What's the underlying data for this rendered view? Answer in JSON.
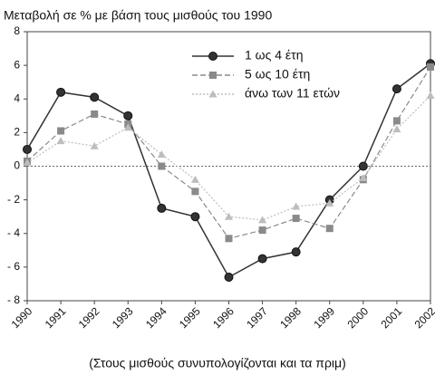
{
  "chart_data": {
    "type": "line",
    "title": "Μεταβολή σε % με βάση τους μισθούς του 1990",
    "caption": "(Στους μισθούς συνυπολογίζονται και τα πριμ)",
    "categories": [
      "1990",
      "1991",
      "1992",
      "1993",
      "1994",
      "1995",
      "1996",
      "1997",
      "1998",
      "1999",
      "2000",
      "2001",
      "2002"
    ],
    "series": [
      {
        "name": "1 ως 4 έτη",
        "color": "#333333",
        "marker": "circle",
        "dash": "none",
        "values": [
          1.0,
          4.4,
          4.1,
          3.0,
          -2.5,
          -3.0,
          -6.6,
          -5.5,
          -5.1,
          -2.0,
          0.0,
          4.6,
          6.1
        ]
      },
      {
        "name": "5 ως 10 έτη",
        "color": "#8a8a8a",
        "marker": "square",
        "dash": "6,3",
        "values": [
          0.3,
          2.1,
          3.1,
          2.5,
          0.0,
          -1.5,
          -4.3,
          -3.8,
          -3.1,
          -3.7,
          -0.8,
          2.7,
          5.9
        ]
      },
      {
        "name": "άνω των 11 ετών",
        "color": "#bdbdbd",
        "marker": "triangle",
        "dash": "2,2",
        "values": [
          0.2,
          1.5,
          1.2,
          2.3,
          0.7,
          -0.8,
          -3.0,
          -3.2,
          -2.4,
          -2.2,
          -0.7,
          2.2,
          4.2
        ]
      }
    ],
    "ylim": [
      -8,
      8
    ],
    "yticks": [
      {
        "value": -8,
        "label": "- 8"
      },
      {
        "value": -6,
        "label": "- 6"
      },
      {
        "value": -4,
        "label": "- 4"
      },
      {
        "value": -2,
        "label": "- 2"
      },
      0,
      2,
      4,
      6,
      8
    ],
    "zero_line": true
  }
}
